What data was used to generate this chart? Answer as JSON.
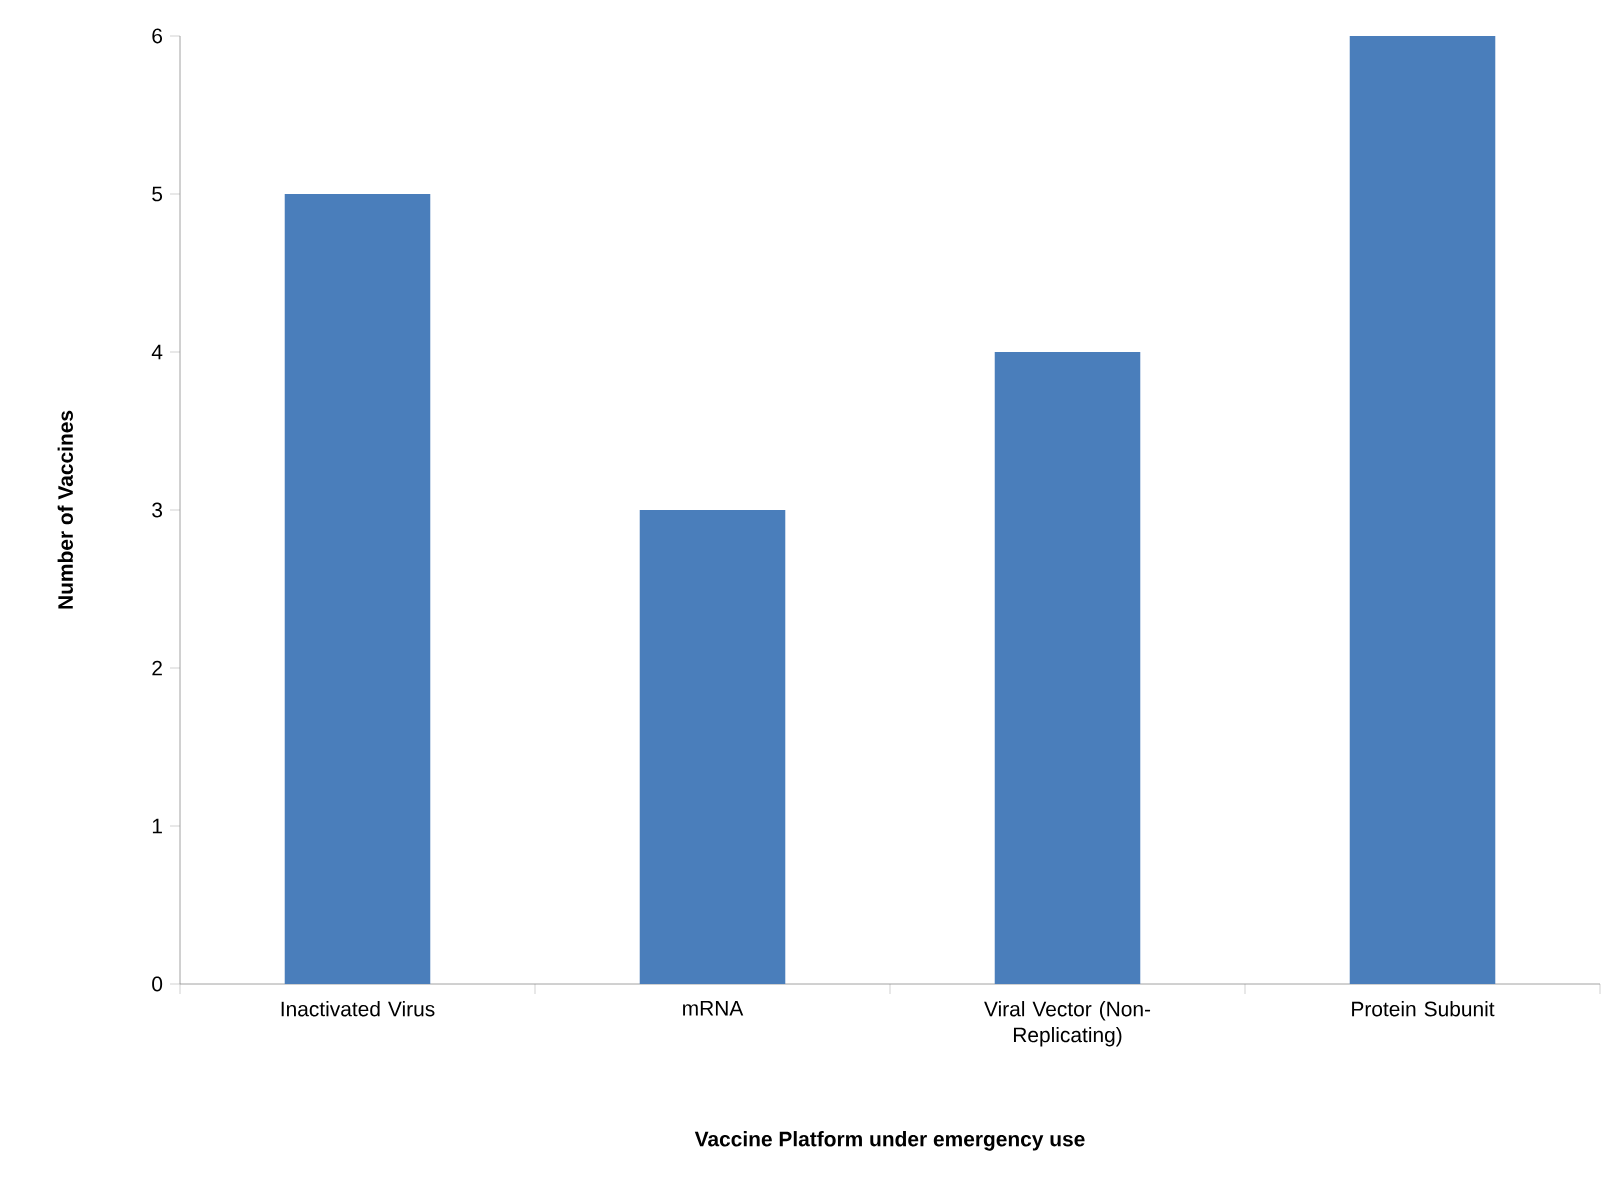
{
  "chart_data": {
    "type": "bar",
    "xlabel": "Vaccine Platform under emergency use",
    "ylabel": "Number of Vaccines",
    "categories": [
      "Inactivated Virus",
      "mRNA",
      "Viral Vector (Non-Replicating)",
      "Protein Subunit"
    ],
    "values": [
      5,
      3,
      4,
      6
    ],
    "color": "#4a7ebb",
    "ylim": [
      0,
      6
    ],
    "yticks": [
      0,
      1,
      2,
      3,
      4,
      5,
      6
    ],
    "grid": false
  }
}
